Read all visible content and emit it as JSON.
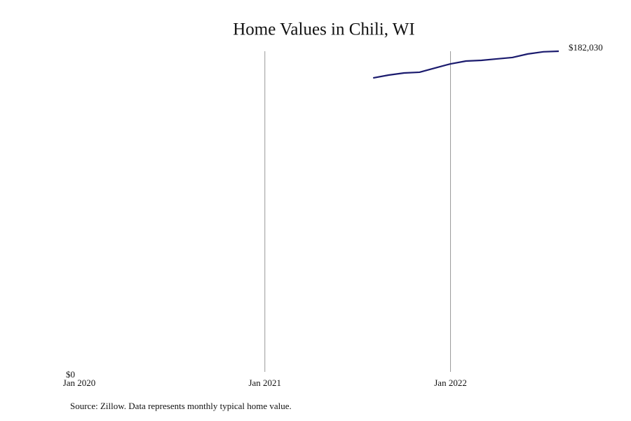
{
  "chart_data": {
    "type": "line",
    "title": "Home Values in Chili, WI",
    "x": [
      "2021-08",
      "2021-09",
      "2021-10",
      "2021-11",
      "2021-12",
      "2022-01",
      "2022-02",
      "2022-03",
      "2022-04",
      "2022-05",
      "2022-06",
      "2022-07",
      "2022-08"
    ],
    "series": [
      {
        "color": "#1b1b6e",
        "values": [
          167000,
          168600,
          169800,
          170200,
          172600,
          174900,
          176500,
          176900,
          177700,
          178500,
          180500,
          181700,
          182030
        ],
        "value_labels": [
          null,
          null,
          null,
          null,
          null,
          null,
          null,
          null,
          null,
          null,
          null,
          null,
          "$182,030"
        ]
      }
    ],
    "xlim": [
      "2020-01",
      "2022-08"
    ],
    "xticks": [
      {
        "value": "2020-01",
        "label": "Jan 2020"
      },
      {
        "value": "2021-01",
        "label": "Jan 2021"
      },
      {
        "value": "2022-01",
        "label": "Jan 2022"
      }
    ],
    "ylim": [
      0,
      182030
    ],
    "yticks": [
      {
        "value": 0,
        "label": "$0"
      }
    ],
    "xgrid": true,
    "source": "Source: Zillow. Data represents monthly typical home value."
  }
}
